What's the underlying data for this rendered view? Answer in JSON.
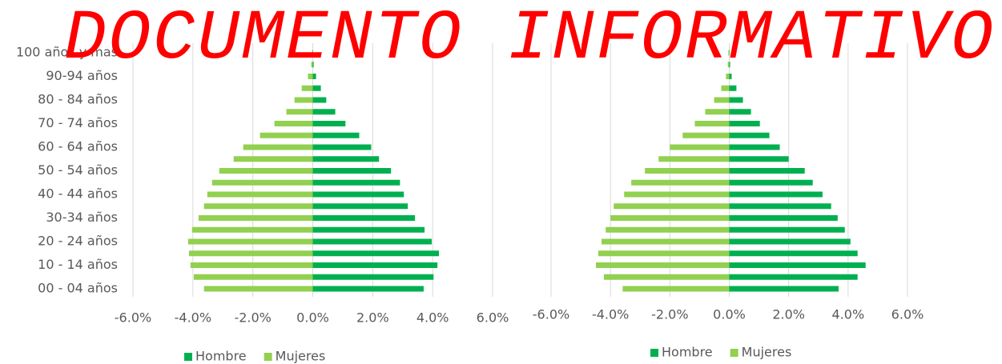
{
  "watermark": "DOCUMENTO INFORMATIVO",
  "chart_data": [
    {
      "type": "bar",
      "orientation": "horizontal",
      "stacked": true,
      "categories": [
        "00 - 04 años",
        null,
        "10 - 14 años",
        null,
        "20 - 24 años",
        null,
        "30-34 años",
        null,
        "40 - 44 años",
        null,
        "50 - 54 años",
        null,
        "60 - 64 años",
        null,
        "70 - 74 años",
        null,
        "80 - 84 años",
        null,
        "90-94 años",
        null,
        "100 años y mas"
      ],
      "series": [
        {
          "name": "Hombre",
          "color": "#00b050",
          "values": [
            3.7,
            4.03,
            4.16,
            4.21,
            3.97,
            3.73,
            3.41,
            3.17,
            3.04,
            2.91,
            2.61,
            2.21,
            1.95,
            1.55,
            1.09,
            0.75,
            0.45,
            0.27,
            0.11,
            0.03,
            0.01
          ]
        },
        {
          "name": "Mujeres",
          "color": "#92d050",
          "values": [
            -3.63,
            -3.97,
            -4.08,
            -4.13,
            -4.16,
            -4.03,
            -3.81,
            -3.63,
            -3.52,
            -3.36,
            -3.12,
            -2.64,
            -2.32,
            -1.76,
            -1.28,
            -0.88,
            -0.61,
            -0.37,
            -0.16,
            -0.05,
            -0.02
          ]
        }
      ],
      "xlim": [
        -6,
        6
      ],
      "xticks": [
        {
          "value": -6,
          "label": "-6.0%"
        },
        {
          "value": -4,
          "label": "-4.0%"
        },
        {
          "value": -2,
          "label": "-2.0%"
        },
        {
          "value": 0,
          "label": "0.0%"
        },
        {
          "value": 2,
          "label": "2.0%"
        },
        {
          "value": 4,
          "label": "4.0%"
        },
        {
          "value": 6,
          "label": "6.0%"
        }
      ],
      "grid": true,
      "legend": "bottom"
    },
    {
      "type": "bar",
      "orientation": "horizontal",
      "stacked": true,
      "series": [
        {
          "name": "Hombre",
          "color": "#00b050",
          "values": [
            3.68,
            4.32,
            4.59,
            4.32,
            4.08,
            3.89,
            3.65,
            3.43,
            3.14,
            2.81,
            2.54,
            2.0,
            1.7,
            1.35,
            1.03,
            0.73,
            0.46,
            0.24,
            0.08,
            0.03,
            0.01
          ]
        },
        {
          "name": "Mujeres",
          "color": "#92d050",
          "values": [
            -3.59,
            -4.22,
            -4.49,
            -4.41,
            -4.3,
            -4.16,
            -4.0,
            -3.89,
            -3.54,
            -3.3,
            -2.84,
            -2.38,
            -2.0,
            -1.57,
            -1.16,
            -0.81,
            -0.51,
            -0.27,
            -0.11,
            -0.05,
            -0.03
          ]
        }
      ],
      "xlim": [
        -6,
        6
      ],
      "xticks": [
        {
          "value": -6,
          "label": "-6.0%"
        },
        {
          "value": -4,
          "label": "-4.0%"
        },
        {
          "value": -2,
          "label": "-2.0%"
        },
        {
          "value": 0,
          "label": "0.0%"
        },
        {
          "value": 2,
          "label": "2.0%"
        },
        {
          "value": 4,
          "label": "4.0%"
        },
        {
          "value": 6,
          "label": "6.0%"
        }
      ],
      "grid": true,
      "legend": "bottom"
    }
  ]
}
